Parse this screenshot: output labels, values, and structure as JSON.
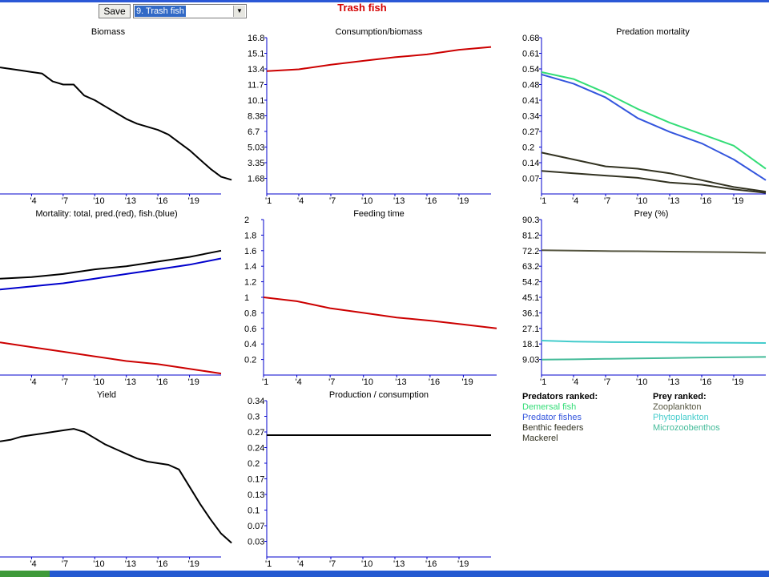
{
  "toolbar": {
    "save_label": "Save",
    "species_value": "9. Trash fish",
    "dropdown_icon": "chevron-down-icon"
  },
  "page_title": "Trash fish",
  "colors": {
    "accent_title": "#d40000",
    "axis": "#0000cc",
    "red": "#cc0000",
    "blue": "#0000cc",
    "green": "#33dd77",
    "royal_blue": "#3355dd",
    "dark": "#333322",
    "olive": "#555540",
    "teal_light": "#44cccc",
    "teal": "#44bb99"
  },
  "chart_data": [
    {
      "id": "biomass",
      "type": "line",
      "title": "Biomass",
      "x_tick_labels": [
        "'4",
        "'7",
        "'10",
        "'13",
        "'16",
        "'19"
      ],
      "y_tick_labels": [],
      "ylim": [
        0,
        10
      ],
      "grid": false,
      "series": [
        {
          "color": "#000000",
          "x": [
            0,
            1,
            2,
            3,
            4,
            5,
            6,
            7,
            8,
            9,
            10,
            11,
            12,
            13,
            14,
            15,
            16,
            17,
            18,
            19,
            20,
            21,
            22
          ],
          "values": [
            8.1,
            8,
            7.9,
            7.8,
            7.7,
            7.2,
            7,
            7,
            6.3,
            6,
            5.6,
            5.2,
            4.8,
            4.5,
            4.3,
            4.1,
            3.8,
            3.3,
            2.8,
            2.2,
            1.6,
            1.1,
            0.9
          ]
        }
      ]
    },
    {
      "id": "consumption_biomass",
      "type": "line",
      "title": "Consumption/biomass",
      "x_tick_labels": [
        "'1",
        "'4",
        "'7",
        "'10",
        "'13",
        "'16",
        "'19"
      ],
      "y_tick_labels": [
        "1.68",
        "3.35",
        "5.03",
        "6.7",
        "8.38",
        "10.1",
        "11.7",
        "13.4",
        "15.1",
        "16.8"
      ],
      "ylim": [
        0,
        16.8
      ],
      "grid": false,
      "series": [
        {
          "color": "#cc0000",
          "x": [
            0,
            3,
            6,
            9,
            12,
            15,
            18,
            21
          ],
          "values": [
            13.2,
            13.4,
            13.9,
            14.3,
            14.7,
            15.0,
            15.5,
            15.8
          ]
        }
      ]
    },
    {
      "id": "predation_mortality",
      "type": "line",
      "title": "Predation mortality",
      "x_tick_labels": [
        "'1",
        "'4",
        "'7",
        "'10",
        "'13",
        "'16",
        "'19"
      ],
      "y_tick_labels": [
        "0.07",
        "0.14",
        "0.2",
        "0.27",
        "0.34",
        "0.41",
        "0.48",
        "0.54",
        "0.61",
        "0.68"
      ],
      "ylim": [
        0,
        0.68
      ],
      "grid": false,
      "series": [
        {
          "color": "#33dd77",
          "x": [
            0,
            3,
            6,
            9,
            12,
            15,
            18,
            21
          ],
          "values": [
            0.53,
            0.5,
            0.44,
            0.37,
            0.31,
            0.26,
            0.21,
            0.11
          ]
        },
        {
          "color": "#3355dd",
          "x": [
            0,
            3,
            6,
            9,
            12,
            15,
            18,
            21
          ],
          "values": [
            0.52,
            0.48,
            0.42,
            0.33,
            0.27,
            0.22,
            0.15,
            0.06
          ]
        },
        {
          "color": "#333322",
          "x": [
            0,
            3,
            6,
            9,
            12,
            15,
            18,
            21
          ],
          "values": [
            0.18,
            0.15,
            0.12,
            0.11,
            0.09,
            0.06,
            0.03,
            0.01
          ]
        },
        {
          "color": "#333322",
          "x": [
            0,
            3,
            6,
            9,
            12,
            15,
            18,
            21
          ],
          "values": [
            0.1,
            0.09,
            0.08,
            0.07,
            0.05,
            0.04,
            0.02,
            0.005
          ]
        }
      ]
    },
    {
      "id": "mortality",
      "type": "line",
      "title": "Mortality: total, pred.(red), fish.(blue)",
      "x_tick_labels": [
        "'4",
        "'7",
        "'10",
        "'13",
        "'16",
        "'19"
      ],
      "y_tick_labels": [],
      "ylim": [
        0,
        10
      ],
      "grid": false,
      "series": [
        {
          "color": "#000000",
          "x": [
            0,
            3,
            6,
            9,
            12,
            15,
            18,
            21
          ],
          "values": [
            6.2,
            6.3,
            6.5,
            6.8,
            7.0,
            7.3,
            7.6,
            8.0
          ]
        },
        {
          "color": "#0000cc",
          "x": [
            0,
            3,
            6,
            9,
            12,
            15,
            18,
            21
          ],
          "values": [
            5.5,
            5.7,
            5.9,
            6.2,
            6.5,
            6.8,
            7.1,
            7.5
          ]
        },
        {
          "color": "#cc0000",
          "x": [
            0,
            3,
            6,
            9,
            12,
            15,
            18,
            21
          ],
          "values": [
            2.1,
            1.8,
            1.5,
            1.2,
            0.9,
            0.7,
            0.4,
            0.1
          ]
        }
      ]
    },
    {
      "id": "feeding_time",
      "type": "line",
      "title": "Feeding time",
      "x_tick_labels": [
        "'1",
        "'4",
        "'7",
        "'10",
        "'13",
        "'16",
        "'19"
      ],
      "y_tick_labels": [
        "0.2",
        "0.4",
        "0.6",
        "0.8",
        "1",
        "1.2",
        "1.4",
        "1.6",
        "1.8",
        "2"
      ],
      "ylim": [
        0,
        2
      ],
      "grid": false,
      "series": [
        {
          "color": "#cc0000",
          "x": [
            0,
            3,
            6,
            9,
            12,
            15,
            18,
            21
          ],
          "values": [
            1.0,
            0.95,
            0.86,
            0.8,
            0.74,
            0.7,
            0.65,
            0.6
          ]
        }
      ]
    },
    {
      "id": "prey",
      "type": "line",
      "title": "Prey (%)",
      "x_tick_labels": [
        "'1",
        "'4",
        "'7",
        "'10",
        "'13",
        "'16",
        "'19"
      ],
      "y_tick_labels": [
        "9.03",
        "18.1",
        "27.1",
        "36.1",
        "45.1",
        "54.2",
        "63.2",
        "72.2",
        "81.2",
        "90.3"
      ],
      "ylim": [
        0,
        90.3
      ],
      "grid": false,
      "series": [
        {
          "color": "#555540",
          "x": [
            0,
            3,
            6,
            9,
            12,
            15,
            18,
            21
          ],
          "values": [
            72.5,
            72.3,
            72.0,
            71.9,
            71.7,
            71.5,
            71.3,
            71.0
          ]
        },
        {
          "color": "#44cccc",
          "x": [
            0,
            3,
            6,
            9,
            12,
            15,
            18,
            21
          ],
          "values": [
            20.0,
            19.4,
            19.2,
            19.1,
            19.0,
            18.8,
            18.7,
            18.6
          ]
        },
        {
          "color": "#44bb99",
          "x": [
            0,
            3,
            6,
            9,
            12,
            15,
            18,
            21
          ],
          "values": [
            9.0,
            9.1,
            9.4,
            9.7,
            9.9,
            10.2,
            10.4,
            10.5
          ]
        }
      ]
    },
    {
      "id": "yield",
      "type": "line",
      "title": "Yield",
      "x_tick_labels": [
        "'4",
        "'7",
        "'10",
        "'13",
        "'16",
        "'19"
      ],
      "y_tick_labels": [],
      "ylim": [
        0,
        10
      ],
      "grid": false,
      "series": [
        {
          "color": "#000000",
          "x": [
            0,
            1,
            2,
            3,
            4,
            5,
            6,
            7,
            8,
            9,
            10,
            11,
            12,
            13,
            14,
            15,
            16,
            17,
            18,
            19,
            20,
            21,
            22
          ],
          "values": [
            7.4,
            7.5,
            7.7,
            7.8,
            7.9,
            8.0,
            8.1,
            8.2,
            8.0,
            7.6,
            7.2,
            6.9,
            6.6,
            6.3,
            6.1,
            6.0,
            5.9,
            5.6,
            4.5,
            3.4,
            2.4,
            1.5,
            0.9
          ]
        }
      ]
    },
    {
      "id": "production_consumption",
      "type": "line",
      "title": "Production / consumption",
      "x_tick_labels": [
        "'1",
        "'4",
        "'7",
        "'10",
        "'13",
        "'16",
        "'19"
      ],
      "y_tick_labels": [
        "0.03",
        "0.07",
        "0.1",
        "0.13",
        "0.17",
        "0.2",
        "0.24",
        "0.27",
        "0.3",
        "0.34"
      ],
      "ylim": [
        0,
        0.34
      ],
      "grid": false,
      "series": [
        {
          "color": "#000000",
          "x": [
            0,
            21
          ],
          "values": [
            0.265,
            0.265
          ]
        }
      ]
    }
  ],
  "legends": {
    "predators": {
      "heading": "Predators ranked:",
      "items": [
        {
          "label": "Demersal fish",
          "color": "#33dd77"
        },
        {
          "label": "Predator fishes",
          "color": "#3355dd"
        },
        {
          "label": "Benthic feeders",
          "color": "#333322"
        },
        {
          "label": "Mackerel",
          "color": "#333322"
        }
      ]
    },
    "prey": {
      "heading": "Prey ranked:",
      "items": [
        {
          "label": "Zooplankton",
          "color": "#555540"
        },
        {
          "label": "Phytoplankton",
          "color": "#44cccc"
        },
        {
          "label": "Microzoobenthos",
          "color": "#44bb99"
        }
      ]
    }
  }
}
